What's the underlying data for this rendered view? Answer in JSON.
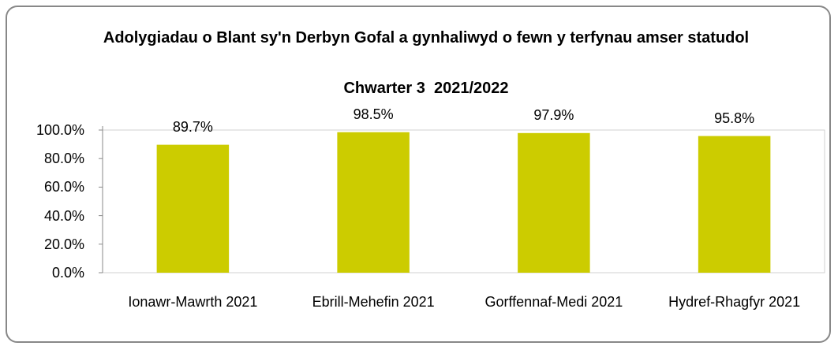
{
  "chart_data": {
    "type": "bar",
    "title": "Adolygiadau o Blant sy'n Derbyn Gofal a gynhaliwyd o fewn y terfynau amser statudol",
    "subtitle": "Chwarter 3  2021/2022",
    "categories": [
      "Ionawr-Mawrth 2021",
      "Ebrill-Mehefin 2021",
      "Gorffennaf-Medi 2021",
      "Hydref-Rhagfyr 2021"
    ],
    "values": [
      89.7,
      98.5,
      97.9,
      95.8
    ],
    "value_labels": [
      "89.7%",
      "98.5%",
      "97.9%",
      "95.8%"
    ],
    "color": "#cccc00",
    "ylim": [
      0,
      100
    ],
    "yticks": [
      {
        "value": 0,
        "label": "0.0%"
      },
      {
        "value": 20,
        "label": "20.0%"
      },
      {
        "value": 40,
        "label": "40.0%"
      },
      {
        "value": 60,
        "label": "60.0%"
      },
      {
        "value": 80,
        "label": "80.0%"
      },
      {
        "value": 100,
        "label": "100.0%"
      }
    ]
  }
}
